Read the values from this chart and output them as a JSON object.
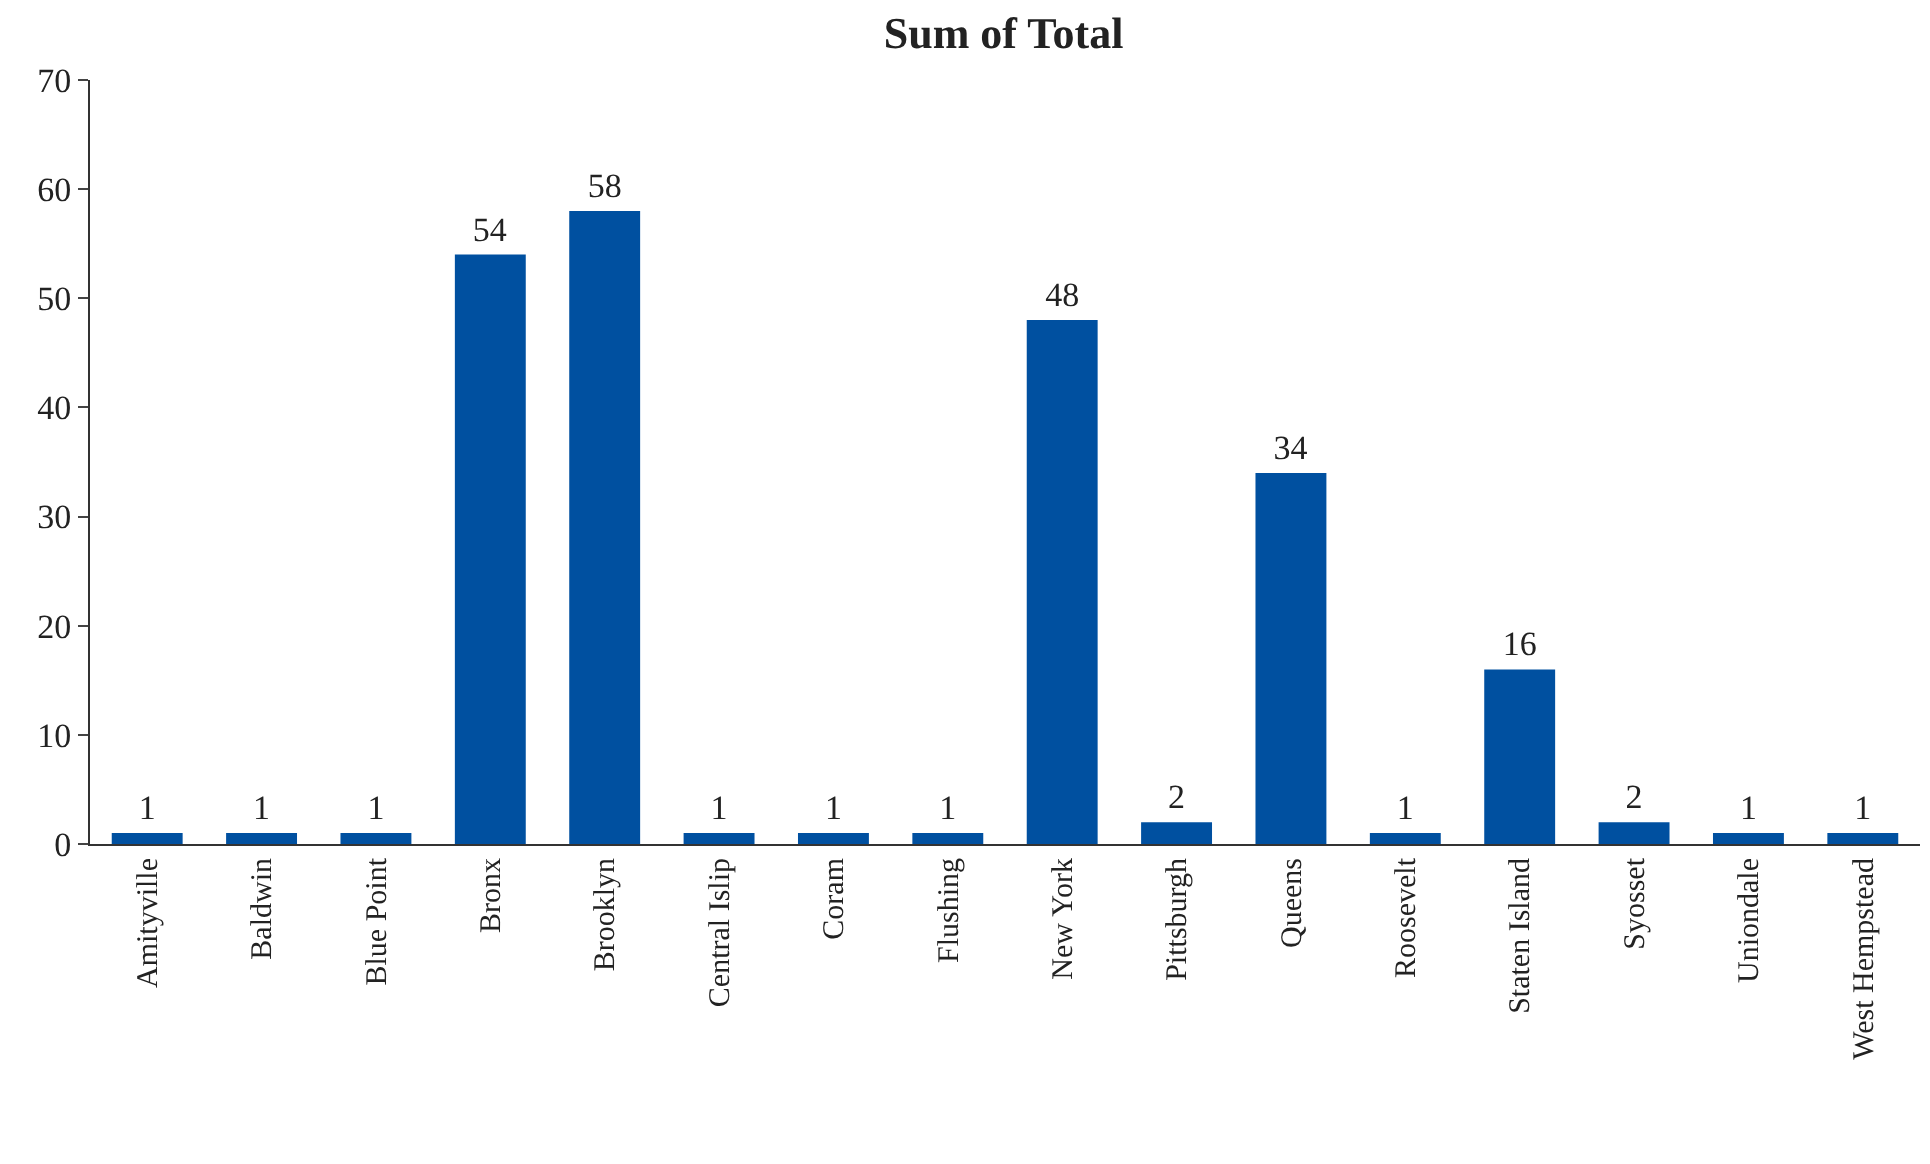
{
  "chart_data": {
    "type": "bar",
    "title": "Sum of Total",
    "categories": [
      "Amityville",
      "Baldwin",
      "Blue Point",
      "Bronx",
      "Brooklyn",
      "Central Islip",
      "Coram",
      "Flushing",
      "New York",
      "Pittsburgh",
      "Queens",
      "Roosevelt",
      "Staten Island",
      "Syosset",
      "Uniondale",
      "West Hempstead"
    ],
    "values": [
      1,
      1,
      1,
      54,
      58,
      1,
      1,
      1,
      48,
      2,
      34,
      1,
      16,
      2,
      1,
      1
    ],
    "color": "#0050a0",
    "ylim": [
      0,
      70
    ],
    "yticks": [
      0,
      10,
      20,
      30,
      40,
      50,
      60,
      70
    ],
    "data_labels": true
  }
}
